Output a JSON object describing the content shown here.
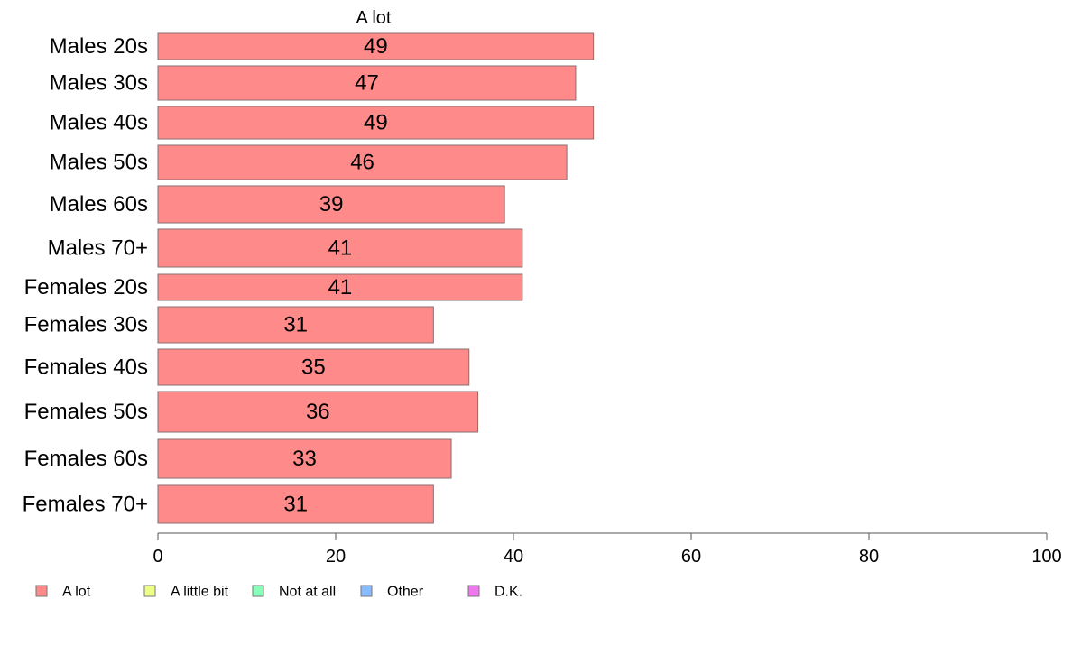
{
  "chart_data": {
    "type": "bar",
    "orientation": "horizontal",
    "title": "A lot",
    "categories": [
      "Males 20s",
      "Males 30s",
      "Males 40s",
      "Males 50s",
      "Males 60s",
      "Males 70+",
      "Females 20s",
      "Females 30s",
      "Females 40s",
      "Females 50s",
      "Females 60s",
      "Females 70+"
    ],
    "series": [
      {
        "name": "A lot",
        "color": "#ff8a8a",
        "values": [
          49,
          47,
          49,
          46,
          39,
          41,
          41,
          31,
          35,
          36,
          33,
          31
        ]
      }
    ],
    "value_labels": [
      "49",
      "47",
      "49",
      "46",
      "39",
      "41",
      "41",
      "31",
      "35",
      "36",
      "33",
      "31"
    ],
    "xlim": [
      0,
      100
    ],
    "xticks": [
      0,
      20,
      40,
      60,
      80,
      100
    ],
    "xtick_labels": [
      "0",
      "20",
      "40",
      "60",
      "80",
      "100"
    ],
    "grid": false,
    "legend": {
      "position": "bottom-left",
      "entries": [
        {
          "label": "A lot",
          "color": "#ff8a8a"
        },
        {
          "label": "A little bit",
          "color": "#eeff88"
        },
        {
          "label": "Not at all",
          "color": "#88ffbb"
        },
        {
          "label": "Other",
          "color": "#88bbff"
        },
        {
          "label": "D.K.",
          "color": "#ee77ee"
        }
      ]
    }
  }
}
